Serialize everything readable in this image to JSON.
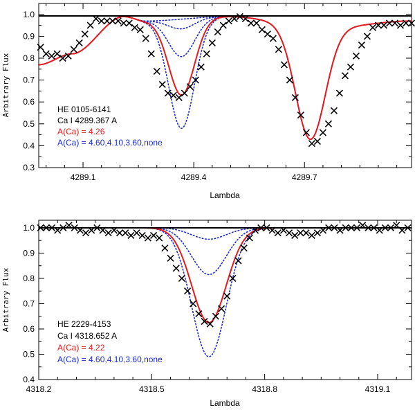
{
  "chart_data": [
    {
      "type": "line",
      "xlabel": "Lambda",
      "ylabel": "Arbitrary Flux",
      "xlim": [
        4288.98,
        4289.99
      ],
      "ylim": [
        0.3,
        1.05
      ],
      "x_ticks": [
        4289.1,
        4289.4,
        4289.7
      ],
      "x_tick_labels": [
        "4289.1",
        "4289.4",
        "4289.7"
      ],
      "y_ticks": [
        0.3,
        0.4,
        0.5,
        0.6,
        0.7,
        0.8,
        0.9,
        1.0
      ],
      "y_tick_labels": [
        "0.3",
        "0.4",
        "0.5",
        "0.6",
        "0.7",
        "0.8",
        "0.9",
        "1.0"
      ],
      "legend": {
        "star": "HE 0105-6141",
        "line": "Ca I 4289.367 A",
        "best_fit": "A(Ca) = 4.26",
        "comparison": "A(Ca) = 4.60,4.10,3.60,none"
      },
      "colors": {
        "observed": "#000000",
        "best_fit": "#e8191e",
        "comparison": "#1b2bd0"
      },
      "observed": {
        "name": "Observed spectrum",
        "x": [
          4288.985,
          4289.0,
          4289.015,
          4289.03,
          4289.045,
          4289.06,
          4289.075,
          4289.09,
          4289.105,
          4289.12,
          4289.135,
          4289.15,
          4289.165,
          4289.18,
          4289.195,
          4289.21,
          4289.225,
          4289.24,
          4289.255,
          4289.27,
          4289.285,
          4289.3,
          4289.315,
          4289.33,
          4289.345,
          4289.36,
          4289.375,
          4289.39,
          4289.405,
          4289.42,
          4289.435,
          4289.45,
          4289.465,
          4289.48,
          4289.495,
          4289.51,
          4289.525,
          4289.54,
          4289.555,
          4289.57,
          4289.585,
          4289.6,
          4289.615,
          4289.63,
          4289.645,
          4289.66,
          4289.675,
          4289.69,
          4289.705,
          4289.72,
          4289.735,
          4289.75,
          4289.765,
          4289.78,
          4289.795,
          4289.81,
          4289.825,
          4289.84,
          4289.855,
          4289.87,
          4289.885,
          4289.9,
          4289.915,
          4289.93,
          4289.945,
          4289.96,
          4289.975,
          4289.99
        ],
        "y": [
          0.85,
          0.82,
          0.81,
          0.82,
          0.8,
          0.81,
          0.84,
          0.87,
          0.91,
          0.95,
          0.98,
          0.97,
          0.97,
          0.97,
          0.97,
          0.96,
          0.96,
          0.94,
          0.93,
          0.89,
          0.82,
          0.74,
          0.68,
          0.64,
          0.63,
          0.62,
          0.64,
          0.67,
          0.7,
          0.76,
          0.82,
          0.87,
          0.92,
          0.95,
          0.97,
          0.98,
          0.99,
          0.98,
          0.96,
          0.96,
          0.93,
          0.91,
          0.89,
          0.84,
          0.77,
          0.7,
          0.62,
          0.54,
          0.46,
          0.41,
          0.42,
          0.46,
          0.5,
          0.56,
          0.64,
          0.72,
          0.76,
          0.81,
          0.86,
          0.9,
          0.94,
          0.95,
          0.95,
          0.96,
          0.96,
          0.95,
          0.96,
          0.96
        ]
      },
      "synth_params": {
        "continuum_segments": [
          [
            4288.98,
            0.77
          ],
          [
            4289.07,
            0.82
          ],
          [
            4289.21,
            0.99
          ],
          [
            4289.27,
            0.97
          ],
          [
            4289.49,
            0.99
          ],
          [
            4289.76,
            0.94
          ],
          [
            4289.99,
            0.97
          ]
        ],
        "target_line": {
          "center": 4289.367,
          "sigma": 0.035
        },
        "other_lines": [
          {
            "center": 4289.716,
            "depth": 0.545,
            "sigma": 0.04
          }
        ],
        "best_fit_depth": 0.355,
        "comparison_depths": [
          0.51,
          0.175,
          0.045,
          0.0
        ]
      }
    },
    {
      "type": "line",
      "xlabel": "Lambda",
      "ylabel": "Arbitrary Flux",
      "xlim": [
        4318.2,
        4319.19
      ],
      "ylim": [
        0.4,
        1.03
      ],
      "x_ticks": [
        4318.2,
        4318.5,
        4318.8,
        4319.1
      ],
      "x_tick_labels": [
        "4318.2",
        "4318.5",
        "4318.8",
        "4319.1"
      ],
      "y_ticks": [
        0.4,
        0.5,
        0.6,
        0.7,
        0.8,
        0.9,
        1.0
      ],
      "y_tick_labels": [
        "0.4",
        "0.5",
        "0.6",
        "0.7",
        "0.8",
        "0.9",
        "1.0"
      ],
      "legend": {
        "star": "HE 2229-4153",
        "line": "Ca I 4318.652 A",
        "best_fit": "A(Ca) = 4.22",
        "comparison": "A(Ca) = 4.60,4.10,3.60,none"
      },
      "colors": {
        "observed": "#000000",
        "best_fit": "#e8191e",
        "comparison": "#1b2bd0"
      },
      "observed": {
        "name": "Observed spectrum",
        "x": [
          4318.205,
          4318.22,
          4318.235,
          4318.25,
          4318.265,
          4318.28,
          4318.295,
          4318.31,
          4318.325,
          4318.34,
          4318.355,
          4318.37,
          4318.385,
          4318.4,
          4318.415,
          4318.43,
          4318.445,
          4318.46,
          4318.475,
          4318.49,
          4318.505,
          4318.52,
          4318.535,
          4318.55,
          4318.565,
          4318.58,
          4318.595,
          4318.61,
          4318.625,
          4318.64,
          4318.655,
          4318.67,
          4318.685,
          4318.7,
          4318.715,
          4318.73,
          4318.745,
          4318.76,
          4318.775,
          4318.79,
          4318.805,
          4318.82,
          4318.835,
          4318.85,
          4318.865,
          4318.88,
          4318.895,
          4318.91,
          4318.925,
          4318.94,
          4318.955,
          4318.97,
          4318.985,
          4319.0,
          4319.015,
          4319.03,
          4319.045,
          4319.06,
          4319.075,
          4319.09,
          4319.105,
          4319.12,
          4319.135,
          4319.15,
          4319.165,
          4319.18
        ],
        "y": [
          1.0,
          1.0,
          1.0,
          0.99,
          1.0,
          1.01,
          1.0,
          0.99,
          0.98,
          0.99,
          1.0,
          0.99,
          0.98,
          0.99,
          0.98,
          0.98,
          0.97,
          0.98,
          0.97,
          0.96,
          0.97,
          0.96,
          0.92,
          0.88,
          0.84,
          0.8,
          0.75,
          0.7,
          0.66,
          0.63,
          0.62,
          0.65,
          0.68,
          0.73,
          0.8,
          0.87,
          0.92,
          0.96,
          0.99,
          1.0,
          1.0,
          0.99,
          0.98,
          0.99,
          0.98,
          0.97,
          0.98,
          0.98,
          0.97,
          0.98,
          0.99,
          1.0,
          1.0,
          0.99,
          1.0,
          1.0,
          1.0,
          1.01,
          1.0,
          1.0,
          0.99,
          1.0,
          1.0,
          1.01,
          0.99,
          1.0
        ]
      },
      "synth_params": {
        "continuum_segments": [
          [
            4318.2,
            1.0
          ],
          [
            4319.19,
            1.0
          ]
        ],
        "target_line": {
          "center": 4318.652,
          "sigma": 0.046
        },
        "other_lines": [],
        "best_fit_depth": 0.375,
        "comparison_depths": [
          0.51,
          0.185,
          0.045,
          0.0
        ]
      }
    }
  ]
}
